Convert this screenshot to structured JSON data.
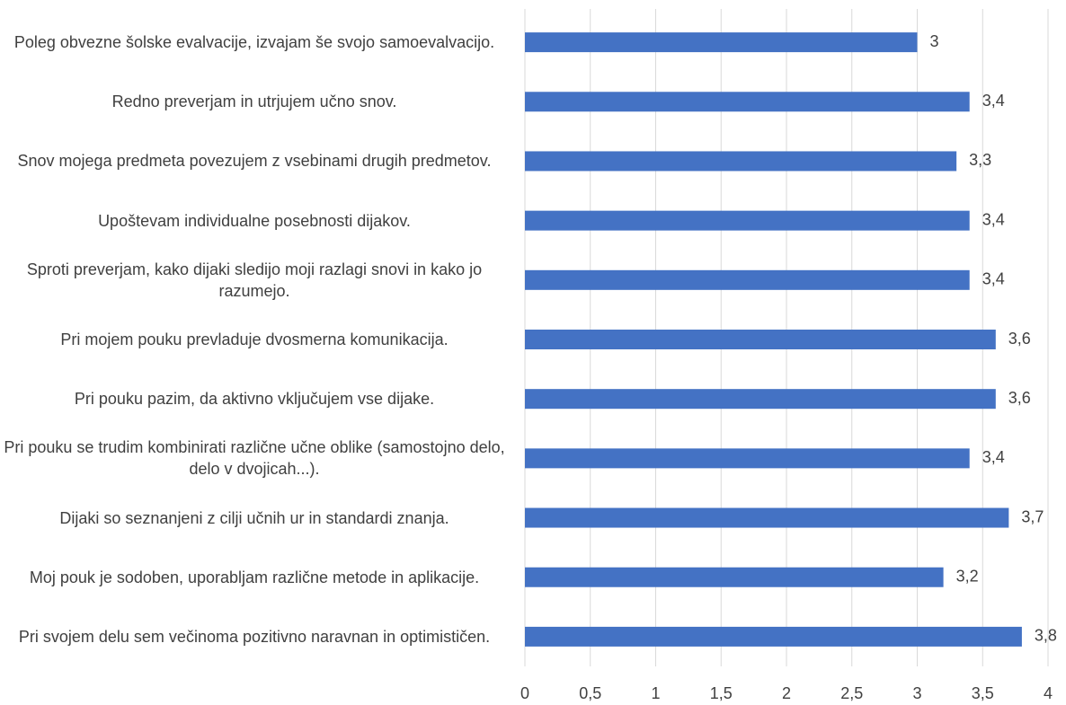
{
  "chart_data": {
    "type": "bar",
    "orientation": "horizontal",
    "categories": [
      "Poleg obvezne šolske evalvacije, izvajam še svojo samoevalvacijo.",
      "Redno preverjam in utrjujem učno snov.",
      "Snov mojega predmeta povezujem z vsebinami drugih predmetov.",
      "Upoštevam individualne posebnosti dijakov.",
      "Sproti preverjam, kako dijaki sledijo moji razlagi snovi in kako jo razumejo.",
      "Pri mojem pouku prevladuje dvosmerna komunikacija.",
      "Pri pouku pazim, da aktivno vključujem vse dijake.",
      "Pri pouku se trudim kombinirati različne učne oblike (samostojno delo, delo v dvojicah...).",
      "Dijaki so seznanjeni z cilji učnih ur in standardi znanja.",
      "Moj pouk je sodoben, uporabljam različne metode in aplikacije.",
      "Pri svojem delu sem večinoma pozitivno naravnan in optimističen."
    ],
    "values": [
      3,
      3.4,
      3.3,
      3.4,
      3.4,
      3.6,
      3.6,
      3.4,
      3.7,
      3.2,
      3.8
    ],
    "value_labels": [
      "3",
      "3,4",
      "3,3",
      "3,4",
      "3,4",
      "3,6",
      "3,6",
      "3,4",
      "3,7",
      "3,2",
      "3,8"
    ],
    "color": "#4472c4",
    "xlim": [
      0,
      4
    ],
    "xticks": [
      0,
      {
        "value": 0.5,
        "label": "0,5"
      },
      1,
      {
        "value": 1.5,
        "label": "1,5"
      },
      2,
      {
        "value": 2.5,
        "label": "2,5"
      },
      3,
      {
        "value": 3.5,
        "label": "3,5"
      },
      4
    ],
    "grid": true
  }
}
